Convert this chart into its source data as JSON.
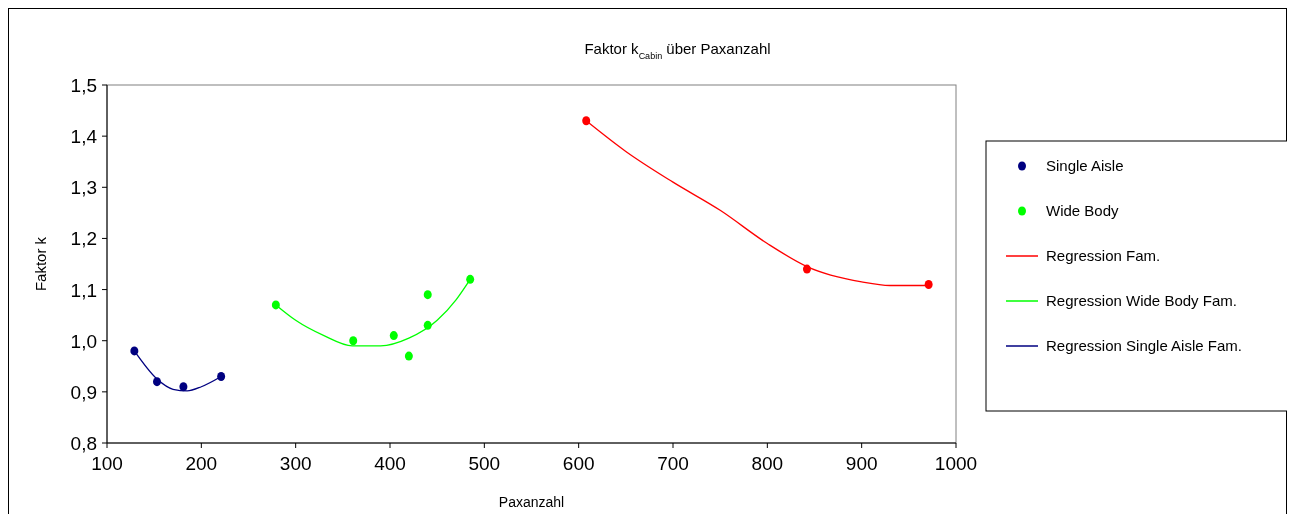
{
  "chart_data": {
    "type": "scatter",
    "title": "Faktor k$_{Cabin}$ über Paxanzahl",
    "xlabel": "Paxanzahl",
    "ylabel": "Faktor k",
    "xlim": [
      100,
      1000
    ],
    "xticks": [
      100,
      200,
      300,
      400,
      500,
      600,
      700,
      800,
      900,
      1000
    ],
    "ylim": [
      0.8,
      1.5
    ],
    "yticks": [
      {
        "value": 0.8,
        "label": "0,8"
      },
      {
        "value": 0.9,
        "label": "0,9"
      },
      {
        "value": 1.0,
        "label": "1,0"
      },
      {
        "value": 1.1,
        "label": "1,1"
      },
      {
        "value": 1.2,
        "label": "1,2"
      },
      {
        "value": 1.3,
        "label": "1,3"
      },
      {
        "value": 1.4,
        "label": "1,4"
      },
      {
        "value": 1.5,
        "label": "1,5"
      }
    ],
    "grid": false,
    "legend": "right",
    "marker": "circle",
    "series": [
      {
        "name": "Single Aisle",
        "color": "#000080",
        "x": [
          129,
          153,
          181,
          221
        ],
        "values": [
          0.98,
          0.92,
          0.91,
          0.93
        ]
      },
      {
        "name": "Wide Body",
        "color": "#00ff00",
        "x": [
          279,
          361,
          404,
          420,
          440,
          440,
          485
        ],
        "values": [
          1.07,
          1.0,
          1.01,
          0.97,
          1.09,
          1.03,
          1.12
        ]
      },
      {
        "color": "#ff0000",
        "x": [
          608,
          842,
          971
        ],
        "values": [
          1.43,
          1.14,
          1.11
        ]
      },
      {
        "name": "Regression Fam.",
        "type": "line",
        "marker": "none",
        "color": "#ff0000",
        "x": [
          608,
          650,
          700,
          750,
          800,
          842,
          900,
          930,
          971
        ],
        "values": [
          1.43,
          1.37,
          1.31,
          1.255,
          1.19,
          1.145,
          1.115,
          1.108,
          1.108
        ]
      },
      {
        "name": "Regression Wide Body Fam.",
        "type": "line",
        "marker": "none",
        "color": "#00ff00",
        "x": [
          279,
          300,
          330,
          360,
          390,
          420,
          450,
          470,
          485
        ],
        "values": [
          1.07,
          1.04,
          1.01,
          0.99,
          0.99,
          1.005,
          1.04,
          1.08,
          1.12
        ]
      },
      {
        "name": "Regression Single Aisle Fam.",
        "type": "line",
        "marker": "none",
        "color": "#000080",
        "x": [
          129,
          153,
          170,
          185,
          200,
          221
        ],
        "values": [
          0.98,
          0.925,
          0.905,
          0.902,
          0.91,
          0.93
        ]
      }
    ]
  }
}
